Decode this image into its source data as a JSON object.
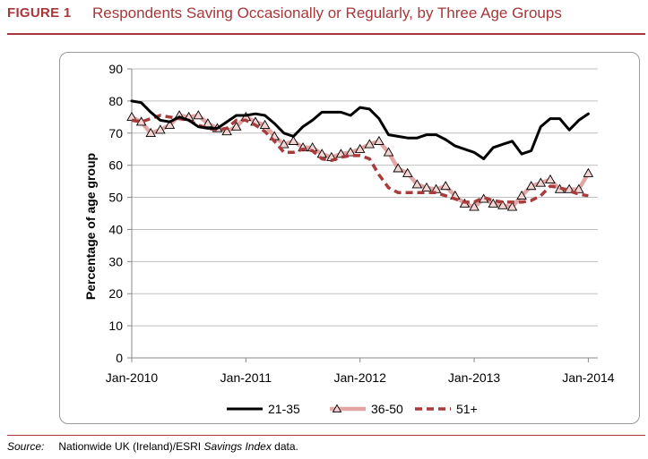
{
  "figure": {
    "label": "FIGURE 1",
    "title": "Respondents Saving Occasionally or Regularly, by Three Age Groups"
  },
  "source": {
    "label": "Source:",
    "text_before": "Nationwide UK (Ireland)/ESRI ",
    "text_italic": "Savings Index",
    "text_after": " data."
  },
  "colors": {
    "accent": "#a6373a",
    "series_21_35": "#000000",
    "series_36_50": "#e3a6a4",
    "series_51_plus": "#a83c3c"
  },
  "chart_data": {
    "type": "line",
    "title": "Respondents Saving Occasionally or Regularly, by Three Age Groups",
    "xlabel": "",
    "ylabel": "Percentage of age group",
    "ylim": [
      0,
      90
    ],
    "yticks": [
      "0",
      "10",
      "20",
      "30",
      "40",
      "50",
      "60",
      "70",
      "80",
      "90"
    ],
    "xticks": [
      "Jan-2010",
      "Jan-2011",
      "Jan-2012",
      "Jan-2013",
      "Jan-2014"
    ],
    "xtick_months": [
      0,
      12,
      24,
      36,
      48
    ],
    "x_month_range": [
      0,
      49
    ],
    "grid": "horizontal",
    "legend": "bottom-center",
    "series": [
      {
        "name": "21-35",
        "style": "solid",
        "values": [
          80,
          79.5,
          76.5,
          74,
          73.5,
          75,
          74,
          72,
          71.5,
          71.5,
          73.5,
          75.5,
          75.5,
          76,
          75.5,
          73,
          70,
          69,
          72,
          74,
          76.5,
          76.5,
          76.5,
          75.5,
          78,
          77.5,
          74.5,
          69.5,
          69,
          68.5,
          68.5,
          69.5,
          69.5,
          68,
          66,
          65,
          64,
          62,
          65.5,
          66.5,
          67.5,
          63.5,
          64.5,
          72,
          74.5,
          74.5,
          71,
          74,
          76
        ]
      },
      {
        "name": "36-50",
        "style": "triangle-markers",
        "values": [
          75,
          73.5,
          70,
          71,
          72.5,
          75.5,
          75,
          75.5,
          73,
          71.5,
          70.5,
          72,
          75,
          73.5,
          72.5,
          69,
          66.5,
          67.5,
          65.5,
          65.5,
          63.5,
          62.5,
          63.5,
          64,
          65,
          66.5,
          67.5,
          64,
          59,
          57.5,
          54,
          53,
          52.5,
          53.5,
          50.5,
          48,
          47,
          49.5,
          48,
          47.5,
          47,
          50.5,
          53.5,
          54.5,
          55.5,
          52.5,
          52.5,
          52.5,
          57.5
        ]
      },
      {
        "name": "51+",
        "style": "dashed",
        "values": [
          74,
          73.5,
          74.5,
          75.5,
          75,
          74.5,
          74,
          72.5,
          71.5,
          71,
          71.5,
          74,
          74,
          72.5,
          70.5,
          67.5,
          64,
          64,
          65,
          64.5,
          62,
          61.5,
          62.5,
          63,
          63,
          62,
          57,
          53,
          51.5,
          51.5,
          51.5,
          51.5,
          51.5,
          50.5,
          49.5,
          48.5,
          48.5,
          50,
          49,
          48.5,
          48.5,
          48.5,
          49,
          50.5,
          53.5,
          53,
          52,
          51,
          50.5
        ]
      }
    ]
  }
}
